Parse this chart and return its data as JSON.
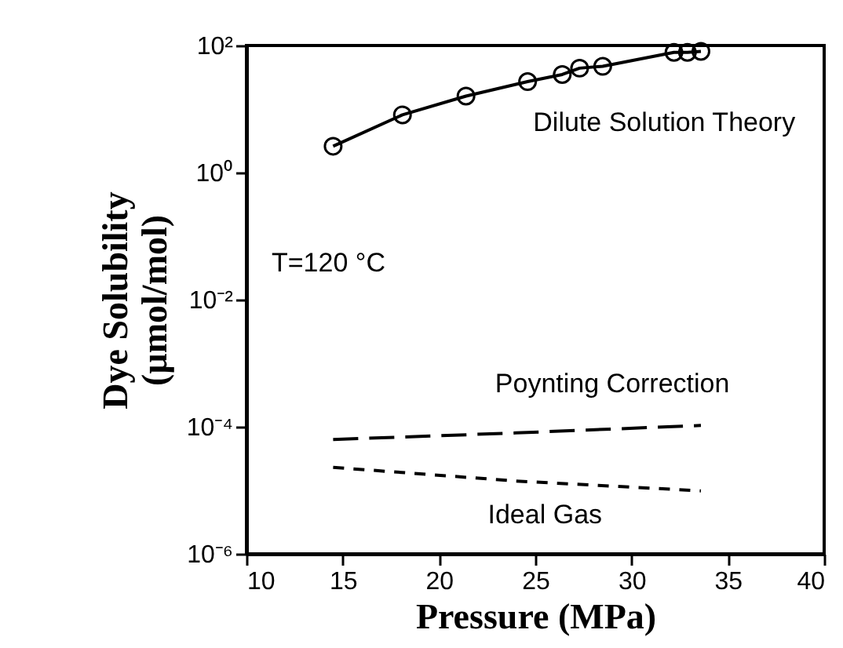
{
  "chart_data": {
    "type": "line",
    "xlabel": "Pressure (MPa)",
    "ylabel": "Dye Solubility\n(µmol/mol)",
    "log": "y",
    "grid": false,
    "xlim": [
      10,
      40
    ],
    "xticks": [
      10,
      15,
      20,
      25,
      30,
      35,
      40
    ],
    "ylim": [
      1e-06,
      100
    ],
    "yticks": [
      {
        "value": 1e-06,
        "label": "10⁻⁶"
      },
      {
        "value": 0.0001,
        "label": "10⁻⁴"
      },
      {
        "value": 0.01,
        "label": "10⁻²"
      },
      {
        "value": 1,
        "label": "10⁰"
      },
      {
        "value": 100,
        "label": "10²"
      }
    ],
    "annotations": [
      "T=120 °C"
    ],
    "series": [
      {
        "name": "Dilute Solution Theory",
        "color": "#000000",
        "marker": "circle",
        "line_style": "solid",
        "x": [
          14.5,
          18.1,
          21.4,
          24.6,
          26.4,
          27.3,
          28.5,
          32.2,
          32.9,
          33.6
        ],
        "values": [
          2.6,
          8.1,
          16,
          27,
          35,
          44,
          47,
          78,
          78,
          81
        ]
      },
      {
        "name": "Poynting Correction",
        "color": "#000000",
        "marker": "none",
        "line_style": "dashed",
        "x": [
          14.5,
          24,
          33.6
        ],
        "values": [
          6.3e-05,
          8e-05,
          0.000105
        ]
      },
      {
        "name": "Ideal Gas",
        "color": "#000000",
        "marker": "none",
        "line_style": "dotted",
        "x": [
          14.5,
          24,
          33.6
        ],
        "values": [
          2.3e-05,
          1.4e-05,
          9.8e-06
        ]
      }
    ]
  }
}
